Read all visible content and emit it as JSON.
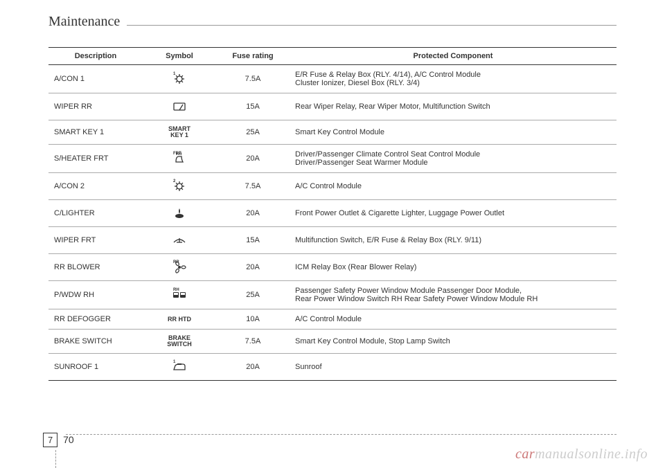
{
  "header": {
    "title": "Maintenance"
  },
  "table": {
    "columns": [
      "Description",
      "Symbol",
      "Fuse rating",
      "Protected Component"
    ],
    "rows": [
      {
        "desc": "A/CON 1",
        "symbol_text": "1",
        "symbol_icon": "gear",
        "rating": "7.5A",
        "prot": "E/R Fuse & Relay Box (RLY. 4/14), A/C Control Module\nCluster Ionizer, Diesel Box (RLY. 3/4)"
      },
      {
        "desc": "WIPER RR",
        "symbol_text": "",
        "symbol_icon": "rear-wiper",
        "rating": "15A",
        "prot": "Rear Wiper Relay, Rear Wiper Motor, Multifunction Switch"
      },
      {
        "desc": "SMART KEY 1",
        "symbol_text": "SMART\nKEY 1",
        "symbol_icon": "",
        "rating": "25A",
        "prot": "Smart Key Control Module"
      },
      {
        "desc": "S/HEATER FRT",
        "symbol_text": "FRT",
        "symbol_icon": "seat-heat",
        "rating": "20A",
        "prot": "Driver/Passenger Climate Control Seat Control Module\nDriver/Passenger Seat Warmer Module"
      },
      {
        "desc": "A/CON 2",
        "symbol_text": "2",
        "symbol_icon": "gear",
        "rating": "7.5A",
        "prot": "A/C Control Module"
      },
      {
        "desc": "C/LIGHTER",
        "symbol_text": "",
        "symbol_icon": "lighter",
        "rating": "20A",
        "prot": "Front Power Outlet & Cigarette Lighter, Luggage Power Outlet"
      },
      {
        "desc": "WIPER FRT",
        "symbol_text": "",
        "symbol_icon": "front-wiper",
        "rating": "15A",
        "prot": "Multifunction Switch, E/R Fuse & Relay Box (RLY. 9/11)"
      },
      {
        "desc": "RR BLOWER",
        "symbol_text": "RR",
        "symbol_icon": "fan",
        "rating": "20A",
        "prot": "ICM Relay Box (Rear Blower Relay)"
      },
      {
        "desc": "P/WDW RH",
        "symbol_text": "RH",
        "symbol_icon": "window",
        "rating": "25A",
        "prot": "Passenger Safety Power Window Module Passenger Door Module,\nRear Power Window Switch RH Rear Safety Power Window Module RH"
      },
      {
        "desc": "RR DEFOGGER",
        "symbol_text": "RR HTD",
        "symbol_icon": "",
        "rating": "10A",
        "prot": "A/C Control Module"
      },
      {
        "desc": "BRAKE SWITCH",
        "symbol_text": "BRAKE\nSWITCH",
        "symbol_icon": "",
        "rating": "7.5A",
        "prot": "Smart Key Control Module, Stop Lamp Switch"
      },
      {
        "desc": "SUNROOF 1",
        "symbol_text": "1",
        "symbol_icon": "sunroof",
        "rating": "20A",
        "prot": "Sunroof"
      }
    ]
  },
  "footer": {
    "section": "7",
    "page": "70"
  },
  "watermark": {
    "part1": "car",
    "part2": "manualsonline.info"
  },
  "colors": {
    "text": "#333333",
    "border": "#333333",
    "row_border": "#aaaaaa",
    "dashed": "#999999",
    "watermark_gray": "#cccccc",
    "watermark_accent": "#cc7777",
    "background": "#ffffff"
  }
}
